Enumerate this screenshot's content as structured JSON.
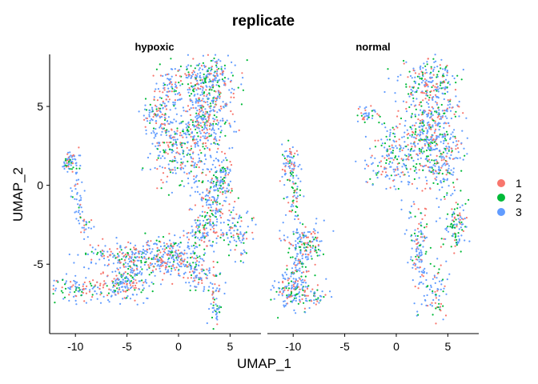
{
  "chart_data": {
    "type": "scatter",
    "title": "replicate",
    "xlabel": "UMAP_1",
    "ylabel": "UMAP_2",
    "facets": [
      "hypoxic",
      "normal"
    ],
    "xlim": [
      -12.5,
      8
    ],
    "ylim": [
      -9.4,
      8.3
    ],
    "xticks": [
      -10,
      -5,
      0,
      5
    ],
    "yticks": [
      -5,
      0,
      5
    ],
    "grid": false,
    "legend_position": "right",
    "series": [
      {
        "name": "1",
        "color": "#F8766D"
      },
      {
        "name": "2",
        "color": "#00BA38"
      },
      {
        "name": "3",
        "color": "#619CFF"
      }
    ],
    "clusters": {
      "hypoxic": [
        {
          "cx": -10.5,
          "cy": 1.5,
          "sx": 0.35,
          "sy": 0.35,
          "n": 60
        },
        {
          "cx": -9.8,
          "cy": -0.5,
          "sx": 0.3,
          "sy": 1.0,
          "n": 40
        },
        {
          "cx": -9.0,
          "cy": -2.5,
          "sx": 0.4,
          "sy": 0.4,
          "n": 20
        },
        {
          "cx": -9.5,
          "cy": -6.5,
          "sx": 1.6,
          "sy": 0.4,
          "n": 110
        },
        {
          "cx": -5.2,
          "cy": -6.2,
          "sx": 1.0,
          "sy": 0.6,
          "n": 170
        },
        {
          "cx": -7.0,
          "cy": -4.3,
          "sx": 1.3,
          "sy": 0.5,
          "n": 70
        },
        {
          "cx": -4.5,
          "cy": -4.6,
          "sx": 1.2,
          "sy": 0.4,
          "n": 90
        },
        {
          "cx": -1.0,
          "cy": -4.6,
          "sx": 1.6,
          "sy": 0.7,
          "n": 280
        },
        {
          "cx": 2.0,
          "cy": -5.5,
          "sx": 0.6,
          "sy": 0.6,
          "n": 80
        },
        {
          "cx": 3.6,
          "cy": -6.6,
          "sx": 0.4,
          "sy": 0.9,
          "n": 50
        },
        {
          "cx": 3.7,
          "cy": -8.2,
          "sx": 0.25,
          "sy": 0.4,
          "n": 15
        },
        {
          "cx": 2.5,
          "cy": -3.0,
          "sx": 0.8,
          "sy": 0.8,
          "n": 110
        },
        {
          "cx": 3.2,
          "cy": -1.3,
          "sx": 0.8,
          "sy": 0.8,
          "n": 110
        },
        {
          "cx": 4.1,
          "cy": 0.5,
          "sx": 0.6,
          "sy": 0.8,
          "n": 100
        },
        {
          "cx": 5.8,
          "cy": -3.0,
          "sx": 0.7,
          "sy": 0.8,
          "n": 90
        },
        {
          "cx": 1.0,
          "cy": 2.0,
          "sx": 1.6,
          "sy": 1.2,
          "n": 220
        },
        {
          "cx": 2.5,
          "cy": 4.5,
          "sx": 1.3,
          "sy": 1.2,
          "n": 320
        },
        {
          "cx": 2.5,
          "cy": 6.8,
          "sx": 1.6,
          "sy": 0.7,
          "n": 240
        },
        {
          "cx": -1.4,
          "cy": 3.5,
          "sx": 0.8,
          "sy": 1.7,
          "n": 140
        },
        {
          "cx": -2.5,
          "cy": 4.6,
          "sx": 0.6,
          "sy": 0.3,
          "n": 40
        },
        {
          "cx": -1.0,
          "cy": 6.0,
          "sx": 0.5,
          "sy": 0.6,
          "n": 50
        }
      ],
      "normal": [
        {
          "cx": -10.4,
          "cy": 1.4,
          "sx": 0.4,
          "sy": 0.6,
          "n": 70
        },
        {
          "cx": -9.9,
          "cy": -1.0,
          "sx": 0.4,
          "sy": 1.2,
          "n": 60
        },
        {
          "cx": -8.8,
          "cy": -3.6,
          "sx": 0.9,
          "sy": 0.6,
          "n": 140
        },
        {
          "cx": -9.5,
          "cy": -5.5,
          "sx": 0.6,
          "sy": 0.8,
          "n": 70
        },
        {
          "cx": -10.2,
          "cy": -6.8,
          "sx": 1.0,
          "sy": 0.6,
          "n": 130
        },
        {
          "cx": -7.8,
          "cy": -6.9,
          "sx": 0.7,
          "sy": 0.4,
          "n": 40
        },
        {
          "cx": -1.0,
          "cy": 1.5,
          "sx": 1.0,
          "sy": 0.9,
          "n": 90
        },
        {
          "cx": 2.0,
          "cy": 2.5,
          "sx": 1.5,
          "sy": 1.4,
          "n": 300
        },
        {
          "cx": 4.0,
          "cy": 4.0,
          "sx": 1.2,
          "sy": 1.4,
          "n": 240
        },
        {
          "cx": 3.0,
          "cy": 6.5,
          "sx": 1.4,
          "sy": 0.8,
          "n": 170
        },
        {
          "cx": 4.8,
          "cy": 1.0,
          "sx": 0.8,
          "sy": 1.0,
          "n": 100
        },
        {
          "cx": 5.8,
          "cy": -2.5,
          "sx": 0.6,
          "sy": 0.7,
          "n": 100
        },
        {
          "cx": 2.2,
          "cy": -4.0,
          "sx": 0.5,
          "sy": 1.5,
          "n": 120
        },
        {
          "cx": 3.8,
          "cy": -6.8,
          "sx": 0.6,
          "sy": 1.0,
          "n": 70
        },
        {
          "cx": -3.0,
          "cy": 4.5,
          "sx": 0.6,
          "sy": 0.3,
          "n": 40
        }
      ]
    }
  }
}
